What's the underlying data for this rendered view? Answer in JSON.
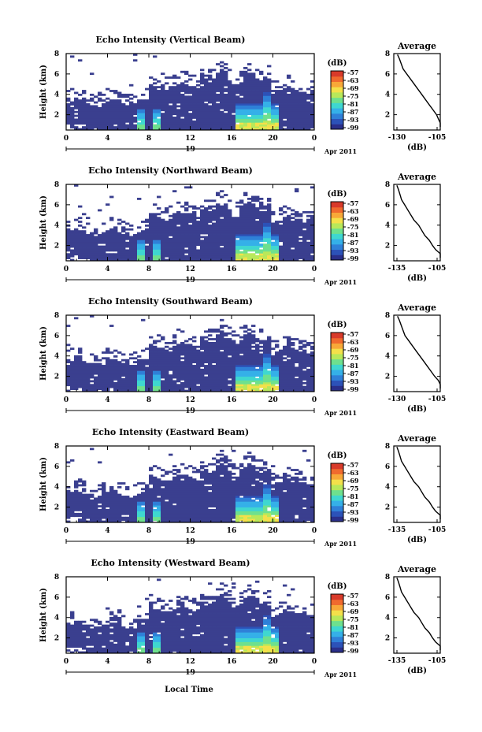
{
  "colors": {
    "background_echo": "#3a3f8f",
    "colormap": [
      "#2a2f8a",
      "#2c52b8",
      "#2f80d8",
      "#35b0e8",
      "#3fd7d0",
      "#6ee08e",
      "#b8e85a",
      "#f4e04a",
      "#f8a838",
      "#f06a2e",
      "#d83a2a"
    ]
  },
  "chart_data": [
    {
      "type": "heatmap",
      "title": "Echo Intensity (Vertical Beam)",
      "ylabel": "Height (km)",
      "x_ticks": [
        "0",
        "4",
        "8",
        "12",
        "16",
        "20",
        "0"
      ],
      "y_ticks": [
        "2",
        "4",
        "6",
        "8"
      ],
      "xlim": [
        0,
        24
      ],
      "ylim": [
        0.5,
        8
      ],
      "day_label": "19",
      "date_label": "Apr 2011",
      "colorbar_title": "(dB)",
      "colorbar_ticks": [
        "-57",
        "-63",
        "-69",
        "-75",
        "-81",
        "-87",
        "-93",
        "-99"
      ],
      "echo_top_km": 3.6,
      "rain_cores_hours": [
        7.2,
        8.8,
        16.8,
        17.6,
        18.6,
        19.4,
        20.2
      ],
      "profile": {
        "title": "Average",
        "xlabel": "(dB)",
        "x_ticks": [
          "-130",
          "-105"
        ],
        "y_ticks": [
          "2",
          "4",
          "6",
          "8"
        ],
        "xlim": [
          -130,
          -105
        ],
        "ylim": [
          0.5,
          8
        ],
        "x": [
          -103,
          -104,
          -106,
          -107,
          -109,
          -111,
          -113,
          -115,
          -117,
          -119,
          -121,
          -123,
          -125,
          -126,
          -127,
          -128
        ],
        "y": [
          0.8,
          1.2,
          1.6,
          2.0,
          2.5,
          3.0,
          3.5,
          4.0,
          4.5,
          5.0,
          5.5,
          6.0,
          6.5,
          7.0,
          7.5,
          7.9
        ]
      }
    },
    {
      "type": "heatmap",
      "title": "Echo Intensity (Northward Beam)",
      "ylabel": "Height (km)",
      "x_ticks": [
        "0",
        "4",
        "8",
        "12",
        "16",
        "20",
        "0"
      ],
      "y_ticks": [
        "2",
        "4",
        "6",
        "8"
      ],
      "xlim": [
        0,
        24
      ],
      "ylim": [
        0.5,
        8
      ],
      "day_label": "19",
      "date_label": "Apr 2011",
      "colorbar_title": "(dB)",
      "colorbar_ticks": [
        "-57",
        "-63",
        "-69",
        "-75",
        "-81",
        "-87",
        "-93",
        "-99"
      ],
      "echo_top_km": 3.7,
      "rain_cores_hours": [
        7.2,
        8.8,
        16.8,
        17.6,
        18.6,
        19.4,
        20.2
      ],
      "profile": {
        "title": "Average",
        "xlabel": "(dB)",
        "x_ticks": [
          "-135",
          "-105"
        ],
        "y_ticks": [
          "2",
          "4",
          "6",
          "8"
        ],
        "xlim": [
          -135,
          -105
        ],
        "ylim": [
          0.5,
          8
        ],
        "x": [
          -104,
          -105,
          -108,
          -110,
          -112,
          -115,
          -117,
          -119,
          -122,
          -124,
          -126,
          -128,
          -130,
          -131,
          -132,
          -133
        ],
        "y": [
          0.8,
          1.2,
          1.6,
          2.0,
          2.5,
          3.0,
          3.5,
          4.0,
          4.5,
          5.0,
          5.5,
          6.0,
          6.5,
          7.0,
          7.5,
          7.9
        ]
      }
    },
    {
      "type": "heatmap",
      "title": "Echo Intensity (Southward Beam)",
      "ylabel": "Height (km)",
      "x_ticks": [
        "0",
        "4",
        "8",
        "12",
        "16",
        "20",
        "0"
      ],
      "y_ticks": [
        "2",
        "4",
        "6",
        "8"
      ],
      "xlim": [
        0,
        24
      ],
      "ylim": [
        0.5,
        8
      ],
      "day_label": "19",
      "date_label": "Apr 2011",
      "colorbar_title": "(dB)",
      "colorbar_ticks": [
        "-57",
        "-63",
        "-69",
        "-75",
        "-81",
        "-87",
        "-93",
        "-99"
      ],
      "echo_top_km": 3.8,
      "rain_cores_hours": [
        7.2,
        8.8,
        16.8,
        17.6,
        18.6,
        19.4,
        20.2
      ],
      "profile": {
        "title": "Average",
        "xlabel": "(dB)",
        "x_ticks": [
          "-130",
          "-105"
        ],
        "y_ticks": [
          "2",
          "4",
          "6",
          "8"
        ],
        "xlim": [
          -130,
          -105
        ],
        "ylim": [
          0.5,
          8
        ],
        "x": [
          -103,
          -104,
          -106,
          -108,
          -110,
          -112,
          -114,
          -116,
          -118,
          -120,
          -122,
          -124,
          -125,
          -126,
          -127,
          -128
        ],
        "y": [
          0.8,
          1.2,
          1.6,
          2.0,
          2.5,
          3.0,
          3.5,
          4.0,
          4.5,
          5.0,
          5.5,
          6.0,
          6.5,
          7.0,
          7.5,
          7.9
        ]
      }
    },
    {
      "type": "heatmap",
      "title": "Echo Intensity (Eastward Beam)",
      "ylabel": "Height (km)",
      "x_ticks": [
        "0",
        "4",
        "8",
        "12",
        "16",
        "20",
        "0"
      ],
      "y_ticks": [
        "2",
        "4",
        "6",
        "8"
      ],
      "xlim": [
        0,
        24
      ],
      "ylim": [
        0.5,
        8
      ],
      "day_label": "19",
      "date_label": "Apr 2011",
      "colorbar_title": "(dB)",
      "colorbar_ticks": [
        "-57",
        "-63",
        "-69",
        "-75",
        "-81",
        "-87",
        "-93",
        "-99"
      ],
      "echo_top_km": 3.7,
      "rain_cores_hours": [
        7.2,
        8.8,
        16.8,
        17.6,
        18.6,
        19.4,
        20.2
      ],
      "profile": {
        "title": "Average",
        "xlabel": "(dB)",
        "x_ticks": [
          "-135",
          "-105"
        ],
        "y_ticks": [
          "2",
          "4",
          "6",
          "8"
        ],
        "xlim": [
          -135,
          -105
        ],
        "ylim": [
          0.5,
          8
        ],
        "x": [
          -104,
          -105,
          -108,
          -110,
          -112,
          -115,
          -117,
          -119,
          -122,
          -124,
          -126,
          -128,
          -130,
          -131,
          -132,
          -133
        ],
        "y": [
          0.8,
          1.2,
          1.6,
          2.0,
          2.5,
          3.0,
          3.5,
          4.0,
          4.5,
          5.0,
          5.5,
          6.0,
          6.5,
          7.0,
          7.5,
          7.9
        ]
      }
    },
    {
      "type": "heatmap",
      "title": "Echo Intensity (Westward Beam)",
      "ylabel": "Height (km)",
      "x_ticks": [
        "0",
        "4",
        "8",
        "12",
        "16",
        "20",
        "0"
      ],
      "y_ticks": [
        "2",
        "4",
        "6",
        "8"
      ],
      "xlim": [
        0,
        24
      ],
      "ylim": [
        0.5,
        8
      ],
      "day_label": "19",
      "date_label": "Apr 2011",
      "colorbar_title": "(dB)",
      "colorbar_ticks": [
        "-57",
        "-63",
        "-69",
        "-75",
        "-81",
        "-87",
        "-93",
        "-99"
      ],
      "echo_top_km": 3.6,
      "rain_cores_hours": [
        7.2,
        8.8,
        16.8,
        17.6,
        18.6,
        19.4,
        20.2
      ],
      "profile": {
        "title": "Average",
        "xlabel": "(dB)",
        "x_ticks": [
          "-135",
          "-105"
        ],
        "y_ticks": [
          "2",
          "4",
          "6",
          "8"
        ],
        "xlim": [
          -135,
          -105
        ],
        "ylim": [
          0.5,
          8
        ],
        "x": [
          -104,
          -105,
          -108,
          -110,
          -112,
          -115,
          -117,
          -119,
          -122,
          -124,
          -126,
          -128,
          -130,
          -131,
          -132,
          -133
        ],
        "y": [
          0.8,
          1.2,
          1.6,
          2.0,
          2.5,
          3.0,
          3.5,
          4.0,
          4.5,
          5.0,
          5.5,
          6.0,
          6.5,
          7.0,
          7.5,
          7.9
        ]
      }
    }
  ],
  "bottom_label": "Local Time"
}
